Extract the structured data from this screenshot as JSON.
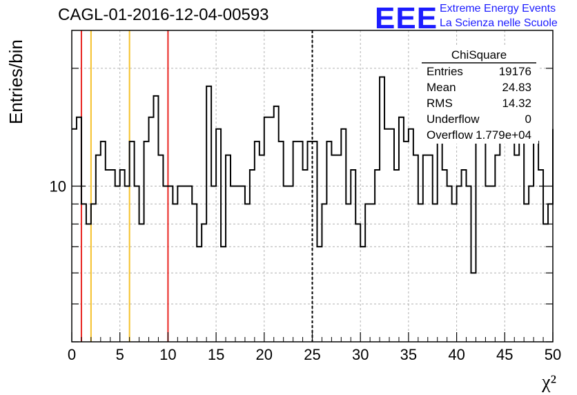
{
  "title": "CAGL-01-2016-12-04-00593",
  "logo": {
    "mark": "EEE",
    "line1": "Extreme Energy Events",
    "line2": "La Scienza nelle Scuole",
    "color": "#1c1cff"
  },
  "stats": {
    "name": "ChiSquare",
    "rows": [
      {
        "label": "Entries",
        "value": "19176"
      },
      {
        "label": "Mean",
        "value": "24.83"
      },
      {
        "label": "RMS",
        "value": "14.32"
      },
      {
        "label": "Underflow",
        "value": "0"
      },
      {
        "label": "Overflow",
        "value": "1.779e+04"
      }
    ]
  },
  "chart_data": {
    "type": "bar",
    "histogram": true,
    "xlabel": "χ²",
    "ylabel": "Entries/bin",
    "xlim": [
      0,
      50
    ],
    "ylim": [
      4,
      25
    ],
    "ylog": true,
    "grid": true,
    "x_ticks": [
      "0",
      "5",
      "10",
      "15",
      "20",
      "25",
      "30",
      "35",
      "40",
      "45",
      "50"
    ],
    "y_ticks": [
      "10"
    ],
    "bin_width": 0.5,
    "values": [
      14,
      15,
      9,
      8,
      9,
      12,
      13,
      11,
      11,
      10,
      11,
      10,
      13,
      10,
      8,
      13,
      15,
      17,
      12,
      10,
      10,
      9,
      10,
      10,
      10,
      9,
      7,
      8,
      18,
      10,
      14,
      7,
      12,
      10,
      10,
      10,
      9,
      11,
      13,
      12,
      15,
      15,
      16,
      13,
      10,
      10,
      13,
      13,
      11,
      13,
      13,
      7,
      9,
      13,
      12,
      12,
      14,
      9,
      11,
      8,
      7,
      9,
      9,
      11,
      19,
      14,
      14,
      11,
      15,
      13,
      14,
      12,
      9,
      12,
      12,
      9,
      14,
      11,
      10,
      9,
      10,
      11,
      10,
      6,
      14,
      14,
      10,
      10,
      12,
      13,
      13,
      14,
      12,
      14,
      9,
      10,
      13,
      11,
      8,
      9,
      14
    ],
    "vertical_lines": [
      {
        "x": 1,
        "color": "#e8231f",
        "style": "solid"
      },
      {
        "x": 2,
        "color": "#f5c12a",
        "style": "solid"
      },
      {
        "x": 6,
        "color": "#f5c12a",
        "style": "solid"
      },
      {
        "x": 10,
        "color": "#e8231f",
        "style": "solid"
      },
      {
        "x": 25,
        "color": "#000000",
        "style": "dashed"
      }
    ]
  }
}
